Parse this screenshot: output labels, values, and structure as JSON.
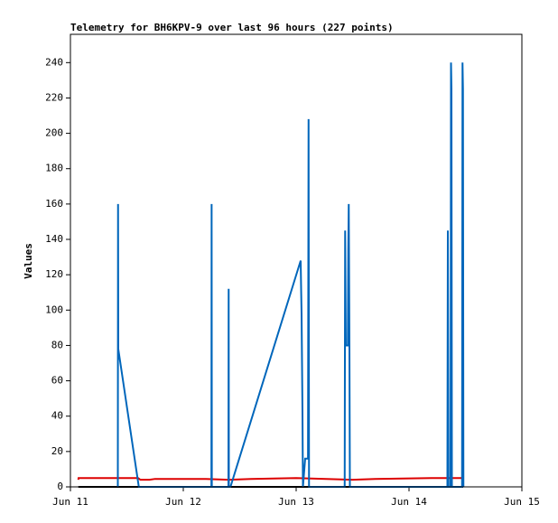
{
  "chart_data": {
    "type": "line",
    "title": "Telemetry for BH6KPV-9 over last 96 hours (227 points)",
    "y_label": "Values",
    "xlim": [
      0,
      4
    ],
    "xticks": [
      {
        "value": 0,
        "label": "Jun 11"
      },
      {
        "value": 1,
        "label": "Jun 12"
      },
      {
        "value": 2,
        "label": "Jun 13"
      },
      {
        "value": 3,
        "label": "Jun 14"
      },
      {
        "value": 4,
        "label": "Jun 15"
      }
    ],
    "ylim": [
      0,
      256
    ],
    "yticks": [
      0,
      20,
      40,
      60,
      80,
      100,
      120,
      140,
      160,
      180,
      200,
      220,
      240
    ],
    "series": [
      {
        "color": "#000000",
        "x": [
          0.07,
          3.48
        ],
        "values": [
          0,
          0
        ]
      },
      {
        "color": "#dd0000",
        "x": [
          0.07,
          0.072,
          0.6,
          0.62,
          0.7,
          0.75,
          1.2,
          1.4,
          1.6,
          2.0,
          2.5,
          2.7,
          3.2,
          3.48
        ],
        "values": [
          4,
          5,
          5,
          4,
          4,
          4.5,
          4.5,
          4,
          4.5,
          5,
          4,
          4.5,
          5,
          5
        ]
      },
      {
        "color": "#0066bb",
        "x": [
          0.42,
          0.422,
          0.424,
          0.606,
          1.249,
          1.251,
          1.253,
          1.4,
          1.402,
          1.404,
          1.418,
          2.04,
          2.044,
          2.048,
          2.052,
          2.056,
          2.06,
          2.08,
          2.105,
          2.11,
          2.114,
          2.43,
          2.434,
          2.44,
          2.458,
          2.462,
          2.466,
          2.472,
          2.476,
          3.34,
          3.344,
          3.35,
          3.368,
          3.372,
          3.376,
          3.38,
          3.47,
          3.474,
          3.478,
          3.482
        ],
        "values": [
          0,
          160,
          78,
          0,
          0,
          160,
          0,
          0,
          112,
          0,
          0,
          128,
          112,
          98,
          70,
          42,
          0,
          16,
          16,
          208,
          0,
          0,
          145,
          80,
          80,
          134,
          160,
          80,
          0,
          0,
          145,
          0,
          0,
          240,
          225,
          0,
          0,
          240,
          225,
          0
        ]
      }
    ]
  }
}
